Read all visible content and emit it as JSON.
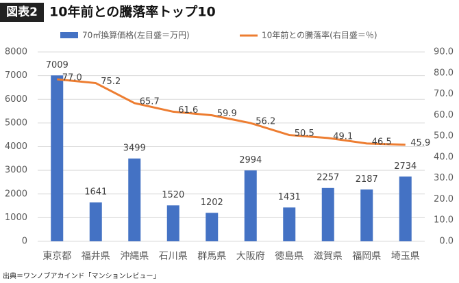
{
  "chart_data": {
    "type": "bar_line",
    "title_tag": "図表2",
    "title": "10年前との騰落率トップ10",
    "source": "出典＝ワンノブアカインド「マンションレビュー」",
    "categories": [
      "東京都",
      "福井県",
      "沖縄県",
      "石川県",
      "群馬県",
      "大阪府",
      "徳島県",
      "滋賀県",
      "福岡県",
      "埼玉県"
    ],
    "series": [
      {
        "name": "70㎡換算価格(左目盛＝万円)",
        "color": "#4472c4",
        "kind": "bar",
        "values": [
          7009,
          1641,
          3499,
          1520,
          1202,
          2994,
          1431,
          2257,
          2187,
          2734
        ]
      },
      {
        "name": "10年前との騰落率(右目盛＝％)",
        "color": "#ed7d31",
        "kind": "line",
        "axis": "y2",
        "values": [
          77.0,
          75.2,
          65.7,
          61.6,
          59.9,
          56.2,
          50.5,
          49.1,
          46.5,
          45.9
        ],
        "value_labels": [
          "77.0",
          "75.2",
          "65.7",
          "61.6",
          "59.9",
          "56.2",
          "50.5",
          "49.1",
          "46.5",
          "45.9"
        ]
      }
    ],
    "ylim": [
      0,
      8000
    ],
    "yticks": [
      0,
      1000,
      2000,
      3000,
      4000,
      5000,
      6000,
      7000,
      8000
    ],
    "y2lim": [
      0,
      90
    ],
    "y2ticks": [
      {
        "value": 0,
        "label": "0.0"
      },
      {
        "value": 10,
        "label": "10.0"
      },
      {
        "value": 20,
        "label": "20.0"
      },
      {
        "value": 30,
        "label": "30.0"
      },
      {
        "value": 40,
        "label": "40.0"
      },
      {
        "value": 50,
        "label": "50.0"
      },
      {
        "value": 60,
        "label": "60.0"
      },
      {
        "value": 70,
        "label": "70.0"
      },
      {
        "value": 80,
        "label": "80.0"
      },
      {
        "value": 90,
        "label": "90.0"
      }
    ],
    "grid": true
  }
}
